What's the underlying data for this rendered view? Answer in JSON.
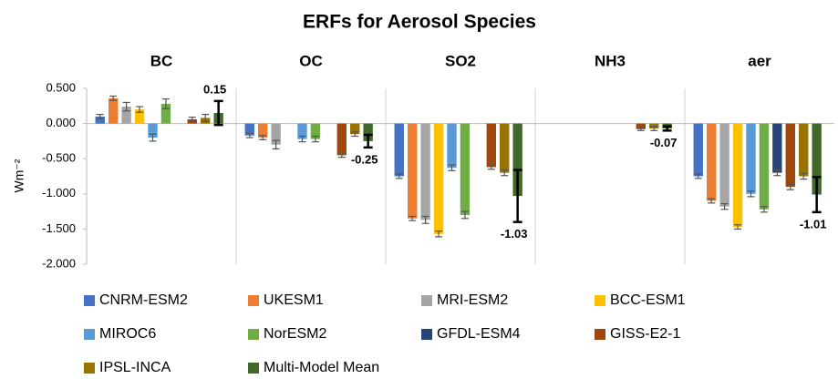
{
  "chart_data": {
    "type": "bar",
    "title": "ERFs for Aerosol Species",
    "y_label": "Wm⁻²",
    "categories": [
      "BC",
      "OC",
      "SO2",
      "NH3",
      "aer"
    ],
    "series": [
      {
        "name": "CNRM-ESM2",
        "color": "#4472c4",
        "values": [
          0.1,
          -0.17,
          -0.75,
          null,
          -0.75
        ],
        "errors": [
          0.03,
          0.03,
          0.03,
          null,
          0.03
        ]
      },
      {
        "name": "UKESM1",
        "color": "#ed7d31",
        "values": [
          0.36,
          -0.2,
          -1.35,
          null,
          -1.1
        ],
        "errors": [
          0.03,
          0.03,
          0.03,
          null,
          0.03
        ]
      },
      {
        "name": "MRI-ESM2",
        "color": "#a5a5a5",
        "values": [
          0.24,
          -0.3,
          -1.37,
          null,
          -1.18
        ],
        "errors": [
          0.06,
          0.06,
          0.05,
          null,
          0.04
        ]
      },
      {
        "name": "BCC-ESM1",
        "color": "#ffc000",
        "values": [
          0.2,
          null,
          -1.57,
          null,
          -1.47
        ],
        "errors": [
          0.04,
          null,
          0.04,
          null,
          0.03
        ]
      },
      {
        "name": "MIROC6",
        "color": "#5b9bd5",
        "values": [
          -0.2,
          -0.22,
          -0.63,
          null,
          -1.0
        ],
        "errors": [
          0.05,
          0.04,
          0.04,
          null,
          0.04
        ]
      },
      {
        "name": "NorESM2",
        "color": "#70ad47",
        "values": [
          0.28,
          -0.22,
          -1.3,
          null,
          -1.22
        ],
        "errors": [
          0.07,
          0.04,
          0.05,
          null,
          0.04
        ]
      },
      {
        "name": "GFDL-ESM4",
        "color": "#264478",
        "values": [
          null,
          null,
          null,
          null,
          -0.7
        ],
        "errors": [
          null,
          null,
          null,
          null,
          0.04
        ]
      },
      {
        "name": "GISS-E2-1",
        "color": "#9e480e",
        "values": [
          0.06,
          -0.45,
          -0.62,
          -0.08,
          -0.9
        ],
        "errors": [
          0.03,
          0.03,
          0.03,
          0.02,
          0.04
        ]
      },
      {
        "name": "IPSL-INCA",
        "color": "#997300",
        "values": [
          0.08,
          -0.15,
          -0.7,
          -0.07,
          -0.75
        ],
        "errors": [
          0.05,
          0.03,
          0.04,
          0.03,
          0.04
        ]
      },
      {
        "name": "Multi-Model Mean",
        "color": "#43682b",
        "values": [
          0.15,
          -0.25,
          -1.03,
          -0.07,
          -1.01
        ],
        "errors": [
          0.17,
          0.09,
          0.37,
          0.03,
          0.25
        ],
        "show_values": true
      }
    ],
    "ylim": [
      -2,
      0.5
    ],
    "yticks": [
      {
        "value": -2,
        "label": "-2.000"
      },
      {
        "value": -1.5,
        "label": "-1.500"
      },
      {
        "value": -1,
        "label": "-1.000"
      },
      {
        "value": -0.5,
        "label": "-0.500"
      },
      {
        "value": 0,
        "label": "0.000"
      },
      {
        "value": 0.5,
        "label": "0.500"
      }
    ],
    "legend": "bottom"
  }
}
